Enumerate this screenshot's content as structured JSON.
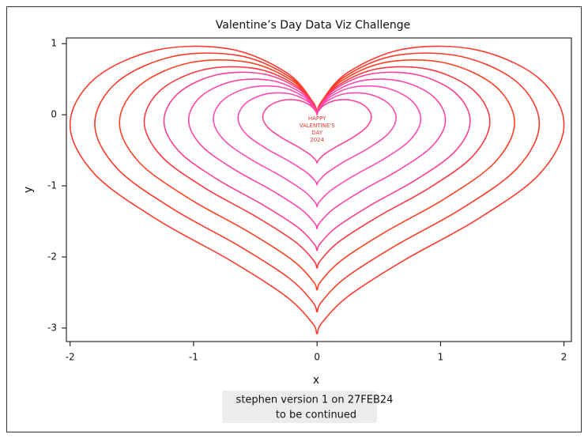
{
  "chart_data": {
    "type": "line",
    "title": "Valentine’s Day Data Viz Challenge",
    "x_label": "x",
    "y_label": "y",
    "xlim": [
      -2.03,
      2.06
    ],
    "ylim": [
      -3.19,
      1.08
    ],
    "xticks": [
      -2,
      -1,
      0,
      1,
      2
    ],
    "yticks": [
      1,
      0,
      -1,
      -2,
      -3
    ],
    "annotation": [
      "HAPPY",
      "VALENTINE'S",
      "DAY",
      "2024"
    ],
    "footnote": [
      "stephen version 1 on 27FEB24",
      "to be continued"
    ],
    "series": [
      {
        "color": "#ff3b2f",
        "x": [
          0,
          0.035,
          0.25,
          0.707,
          1.299,
          1.802,
          2,
          1.802,
          1.299,
          0.707,
          0.25,
          0.035,
          0,
          -0.035,
          -0.25,
          -0.707,
          -1.299,
          -1.802,
          -2,
          -1.802,
          -1.299,
          -0.707,
          -0.25,
          -0.035,
          0
        ],
        "y": [
          0,
          0.184,
          0.596,
          0.925,
          0.91,
          0.505,
          -0.14,
          -0.833,
          -1.47,
          -2.045,
          -2.556,
          -2.936,
          -3.08,
          -2.936,
          -2.556,
          -2.045,
          -1.47,
          -0.833,
          -0.14,
          0.505,
          0.91,
          0.925,
          0.596,
          0.184,
          0
        ]
      },
      {
        "color": "#ff3a28",
        "x": [
          0,
          0.032,
          0.225,
          0.636,
          1.169,
          1.622,
          1.8,
          1.622,
          1.169,
          0.636,
          0.225,
          0.032,
          0,
          -0.032,
          -0.225,
          -0.636,
          -1.169,
          -1.622,
          -1.8,
          -1.622,
          -1.169,
          -0.636,
          -0.225,
          -0.032,
          0
        ],
        "y": [
          0,
          0.166,
          0.536,
          0.833,
          0.819,
          0.455,
          -0.126,
          -0.75,
          -1.323,
          -1.841,
          -2.3,
          -2.642,
          -2.772,
          -2.642,
          -2.3,
          -1.841,
          -1.323,
          -0.75,
          -0.126,
          0.455,
          0.819,
          0.833,
          0.536,
          0.166,
          0
        ]
      },
      {
        "color": "#ff4020",
        "x": [
          0,
          0.028,
          0.2,
          0.566,
          1.039,
          1.442,
          1.6,
          1.442,
          1.039,
          0.566,
          0.2,
          0.028,
          0,
          -0.028,
          -0.2,
          -0.566,
          -1.039,
          -1.442,
          -1.6,
          -1.442,
          -1.039,
          -0.566,
          -0.2,
          -0.028,
          0
        ],
        "y": [
          0,
          0.147,
          0.477,
          0.74,
          0.728,
          0.404,
          -0.112,
          -0.666,
          -1.176,
          -1.636,
          -2.045,
          -2.349,
          -2.464,
          -2.349,
          -2.045,
          -1.636,
          -1.176,
          -0.666,
          -0.112,
          0.404,
          0.728,
          0.74,
          0.477,
          0.147,
          0
        ]
      },
      {
        "color": "#ff3840",
        "x": [
          0,
          0.025,
          0.175,
          0.495,
          0.909,
          1.261,
          1.4,
          1.261,
          0.909,
          0.495,
          0.175,
          0.025,
          0,
          -0.025,
          -0.175,
          -0.495,
          -0.909,
          -1.261,
          -1.4,
          -1.261,
          -0.909,
          -0.495,
          -0.175,
          -0.025,
          0
        ],
        "y": [
          0,
          0.129,
          0.417,
          0.648,
          0.637,
          0.354,
          -0.098,
          -0.583,
          -1.029,
          -1.432,
          -1.789,
          -2.055,
          -2.156,
          -2.055,
          -1.789,
          -1.432,
          -1.029,
          -0.583,
          -0.098,
          0.354,
          0.637,
          0.648,
          0.417,
          0.129,
          0
        ]
      },
      {
        "color": "#ff3f8f",
        "x": [
          0,
          0.022,
          0.155,
          0.438,
          0.805,
          1.117,
          1.24,
          1.117,
          0.805,
          0.438,
          0.155,
          0.022,
          0,
          -0.022,
          -0.155,
          -0.438,
          -0.805,
          -1.117,
          -1.24,
          -1.117,
          -0.805,
          -0.438,
          -0.155,
          -0.022,
          0
        ],
        "y": [
          0,
          0.114,
          0.37,
          0.574,
          0.564,
          0.313,
          -0.087,
          -0.516,
          -0.911,
          -1.268,
          -1.585,
          -1.82,
          -1.91,
          -1.82,
          -1.585,
          -1.268,
          -0.911,
          -0.516,
          -0.087,
          0.313,
          0.564,
          0.574,
          0.37,
          0.114,
          0
        ]
      },
      {
        "color": "#ff44a6",
        "x": [
          0,
          0.018,
          0.13,
          0.368,
          0.675,
          0.937,
          1.04,
          0.937,
          0.675,
          0.368,
          0.13,
          0.018,
          0,
          -0.018,
          -0.13,
          -0.368,
          -0.675,
          -0.937,
          -1.04,
          -0.937,
          -0.675,
          -0.368,
          -0.13,
          -0.018,
          0
        ],
        "y": [
          0,
          0.096,
          0.31,
          0.481,
          0.473,
          0.263,
          -0.073,
          -0.433,
          -0.764,
          -1.063,
          -1.329,
          -1.527,
          -1.602,
          -1.527,
          -1.329,
          -1.063,
          -0.764,
          -0.433,
          -0.073,
          0.263,
          0.473,
          0.481,
          0.31,
          0.096,
          0
        ]
      },
      {
        "color": "#ff4cb3",
        "x": [
          0,
          0.015,
          0.105,
          0.297,
          0.546,
          0.757,
          0.84,
          0.757,
          0.546,
          0.297,
          0.105,
          0.015,
          0,
          -0.015,
          -0.105,
          -0.297,
          -0.546,
          -0.757,
          -0.84,
          -0.757,
          -0.546,
          -0.297,
          -0.105,
          -0.015,
          0
        ],
        "y": [
          0,
          0.077,
          0.25,
          0.389,
          0.382,
          0.212,
          -0.059,
          -0.35,
          -0.617,
          -0.859,
          -1.074,
          -1.233,
          -1.294,
          -1.233,
          -1.074,
          -0.859,
          -0.617,
          -0.35,
          -0.059,
          0.212,
          0.382,
          0.389,
          0.25,
          0.077,
          0
        ]
      },
      {
        "color": "#ff4ab0",
        "x": [
          0,
          0.011,
          0.08,
          0.226,
          0.416,
          0.577,
          0.64,
          0.577,
          0.416,
          0.226,
          0.08,
          0.011,
          0,
          -0.011,
          -0.08,
          -0.226,
          -0.416,
          -0.577,
          -0.64,
          -0.577,
          -0.416,
          -0.226,
          -0.08,
          -0.011,
          0
        ],
        "y": [
          0,
          0.059,
          0.191,
          0.296,
          0.291,
          0.162,
          -0.045,
          -0.267,
          -0.47,
          -0.654,
          -0.818,
          -0.94,
          -0.986,
          -0.94,
          -0.818,
          -0.654,
          -0.47,
          -0.267,
          -0.045,
          0.162,
          0.291,
          0.296,
          0.191,
          0.059,
          0
        ]
      },
      {
        "color": "#ff4499",
        "x": [
          0,
          0.008,
          0.055,
          0.156,
          0.286,
          0.396,
          0.44,
          0.396,
          0.286,
          0.156,
          0.055,
          0.008,
          0,
          -0.008,
          -0.055,
          -0.156,
          -0.286,
          -0.396,
          -0.44,
          -0.396,
          -0.286,
          -0.156,
          -0.055,
          -0.008,
          0
        ],
        "y": [
          0,
          0.04,
          0.131,
          0.204,
          0.2,
          0.111,
          -0.031,
          -0.183,
          -0.323,
          -0.45,
          -0.562,
          -0.646,
          -0.678,
          -0.646,
          -0.562,
          -0.45,
          -0.323,
          -0.183,
          -0.031,
          0.111,
          0.2,
          0.204,
          0.131,
          0.04,
          0
        ]
      }
    ]
  }
}
